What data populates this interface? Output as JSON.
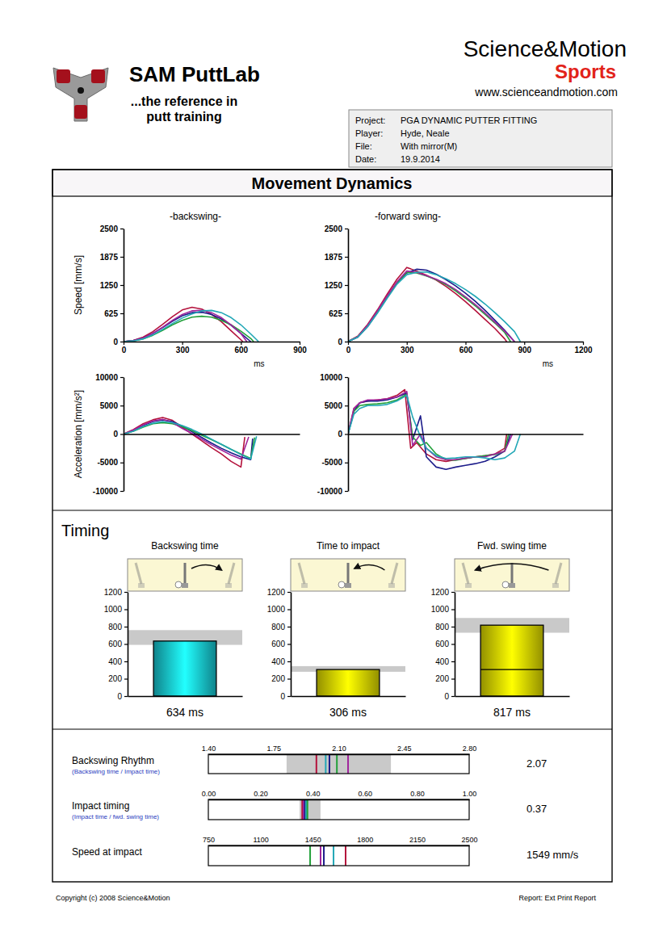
{
  "header": {
    "product": "SAM PuttLab",
    "tagline": [
      "...the reference in",
      "putt training"
    ],
    "company": "Science&Motion",
    "division": "Sports",
    "website": "www.scienceandmotion.com"
  },
  "info": {
    "rows": [
      {
        "label": "Project:",
        "value": "PGA DYNAMIC PUTTER FITTING"
      },
      {
        "label": "Player:",
        "value": "Hyde, Neale"
      },
      {
        "label": "File:",
        "value": "With mirror(M)"
      },
      {
        "label": "Date:",
        "value": "19.9.2014"
      }
    ]
  },
  "section_titles": {
    "dynamics": "Movement Dynamics",
    "timing": "Timing"
  },
  "chart_data": [
    {
      "type": "line",
      "title": "-backswing-",
      "y_label": "Speed [mm/s]",
      "x_label": "ms",
      "xlim": [
        0,
        900
      ],
      "xticks": [
        0,
        300,
        600,
        900
      ],
      "ylim": [
        0,
        2500
      ],
      "yticks": [
        0,
        625,
        1250,
        1875,
        2500
      ],
      "series": [
        {
          "color": "#b4123c",
          "x": [
            0,
            50,
            100,
            150,
            200,
            250,
            300,
            350,
            400,
            450,
            500,
            550,
            600,
            610
          ],
          "values": [
            0,
            25,
            100,
            220,
            380,
            550,
            700,
            760,
            720,
            600,
            440,
            240,
            40,
            0
          ]
        },
        {
          "color": "#1c1c8a",
          "x": [
            0,
            50,
            100,
            150,
            200,
            250,
            300,
            350,
            400,
            450,
            500,
            550,
            600,
            650
          ],
          "values": [
            0,
            20,
            80,
            180,
            310,
            450,
            570,
            640,
            650,
            600,
            500,
            360,
            180,
            0
          ]
        },
        {
          "color": "#22a03a",
          "x": [
            0,
            50,
            100,
            150,
            200,
            250,
            300,
            350,
            400,
            450,
            500,
            550,
            600,
            650,
            665
          ],
          "values": [
            0,
            15,
            60,
            140,
            250,
            370,
            470,
            540,
            560,
            540,
            470,
            370,
            230,
            70,
            0
          ]
        },
        {
          "color": "#a0249c",
          "x": [
            0,
            50,
            100,
            150,
            200,
            250,
            300,
            350,
            400,
            450,
            500,
            550,
            600,
            630
          ],
          "values": [
            0,
            20,
            80,
            180,
            320,
            470,
            600,
            680,
            690,
            640,
            530,
            370,
            180,
            0
          ]
        },
        {
          "color": "#22a7b6",
          "x": [
            0,
            50,
            100,
            150,
            200,
            250,
            300,
            350,
            400,
            450,
            500,
            550,
            600,
            650,
            690
          ],
          "values": [
            0,
            15,
            60,
            150,
            270,
            400,
            520,
            610,
            680,
            690,
            640,
            530,
            370,
            170,
            0
          ]
        }
      ]
    },
    {
      "type": "line",
      "title": "-forward swing-",
      "x_label": "ms",
      "xlim": [
        0,
        1200
      ],
      "xticks": [
        0,
        300,
        600,
        900,
        1200
      ],
      "ylim": [
        0,
        2500
      ],
      "yticks": [
        0,
        625,
        1250,
        1875,
        2500
      ],
      "series": [
        {
          "color": "#b4123c",
          "x": [
            0,
            50,
            100,
            150,
            200,
            250,
            300,
            350,
            400,
            450,
            500,
            550,
            600,
            650,
            700,
            750,
            800,
            810
          ],
          "values": [
            0,
            120,
            380,
            700,
            1050,
            1380,
            1640,
            1560,
            1470,
            1360,
            1220,
            1060,
            880,
            690,
            490,
            290,
            60,
            0
          ]
        },
        {
          "color": "#1c1c8a",
          "x": [
            0,
            50,
            100,
            150,
            200,
            250,
            300,
            350,
            400,
            450,
            500,
            550,
            600,
            650,
            700,
            750,
            800,
            850
          ],
          "values": [
            0,
            100,
            330,
            640,
            980,
            1300,
            1520,
            1600,
            1580,
            1490,
            1370,
            1230,
            1070,
            890,
            690,
            470,
            250,
            0
          ]
        },
        {
          "color": "#22a03a",
          "x": [
            0,
            50,
            100,
            150,
            200,
            250,
            300,
            350,
            400,
            450,
            500,
            550,
            600,
            650,
            700,
            750,
            800,
            830
          ],
          "values": [
            0,
            110,
            350,
            660,
            990,
            1300,
            1530,
            1520,
            1450,
            1370,
            1260,
            1120,
            960,
            790,
            600,
            410,
            200,
            0
          ]
        },
        {
          "color": "#a0249c",
          "x": [
            0,
            50,
            100,
            150,
            200,
            250,
            300,
            350,
            400,
            450,
            500,
            550,
            600,
            650,
            700,
            750,
            800,
            850
          ],
          "values": [
            0,
            110,
            360,
            680,
            1010,
            1320,
            1560,
            1530,
            1460,
            1380,
            1280,
            1150,
            990,
            820,
            630,
            430,
            230,
            0
          ]
        },
        {
          "color": "#22a7b6",
          "x": [
            0,
            50,
            100,
            150,
            200,
            250,
            300,
            350,
            400,
            450,
            500,
            550,
            600,
            650,
            700,
            750,
            800,
            850,
            880
          ],
          "values": [
            0,
            100,
            330,
            630,
            960,
            1270,
            1480,
            1530,
            1540,
            1480,
            1390,
            1280,
            1150,
            1000,
            830,
            640,
            440,
            220,
            0
          ]
        }
      ]
    },
    {
      "type": "line",
      "y_label": "Acceleration [mm/s²]",
      "tick_labels": "y",
      "xlim": [
        0,
        900
      ],
      "ylim": [
        -10000,
        10000
      ],
      "yticks": [
        -10000,
        -5000,
        0,
        5000,
        10000
      ],
      "series": [
        {
          "color": "#b4123c",
          "x": [
            0,
            50,
            100,
            150,
            200,
            250,
            300,
            350,
            400,
            450,
            500,
            550,
            600,
            620
          ],
          "values": [
            0,
            800,
            1800,
            2500,
            2900,
            2400,
            1200,
            0,
            -1200,
            -2400,
            -3500,
            -4800,
            -5800,
            -500
          ]
        },
        {
          "color": "#1c1c8a",
          "x": [
            0,
            50,
            100,
            150,
            200,
            250,
            300,
            350,
            400,
            450,
            500,
            550,
            600,
            650,
            660
          ],
          "values": [
            0,
            600,
            1500,
            2200,
            2500,
            2200,
            1400,
            400,
            -600,
            -1600,
            -2500,
            -3300,
            -4000,
            -4500,
            -800
          ]
        },
        {
          "color": "#22a03a",
          "x": [
            0,
            50,
            100,
            150,
            200,
            250,
            300,
            350,
            400,
            450,
            500,
            550,
            600,
            650,
            670
          ],
          "values": [
            0,
            500,
            1200,
            1800,
            2000,
            1800,
            1300,
            600,
            -200,
            -1000,
            -1800,
            -2700,
            -3500,
            -4300,
            -600
          ]
        },
        {
          "color": "#a0249c",
          "x": [
            0,
            50,
            100,
            150,
            200,
            250,
            300,
            350,
            400,
            450,
            500,
            550,
            600,
            640
          ],
          "values": [
            0,
            700,
            1600,
            2300,
            2600,
            2000,
            1000,
            100,
            -900,
            -1900,
            -2800,
            -3700,
            -4400,
            -500
          ]
        },
        {
          "color": "#22a7b6",
          "x": [
            0,
            50,
            100,
            150,
            200,
            250,
            300,
            350,
            400,
            450,
            500,
            550,
            600,
            650,
            680
          ],
          "values": [
            0,
            500,
            1300,
            1900,
            2200,
            2000,
            1500,
            800,
            0,
            -900,
            -1800,
            -2700,
            -3600,
            -4400,
            -400
          ]
        }
      ]
    },
    {
      "type": "line",
      "tick_labels": "y",
      "xlim": [
        0,
        1200
      ],
      "ylim": [
        -10000,
        10000
      ],
      "yticks": [
        -10000,
        -5000,
        0,
        5000,
        10000
      ],
      "series": [
        {
          "color": "#b4123c",
          "x": [
            0,
            30,
            60,
            100,
            150,
            200,
            250,
            290,
            320,
            350,
            400,
            450,
            500,
            550,
            600,
            650,
            700,
            750,
            800,
            810
          ],
          "values": [
            0,
            4500,
            5500,
            5800,
            6000,
            6200,
            6800,
            7800,
            -2500,
            -1500,
            -3500,
            -4500,
            -4800,
            -4500,
            -4300,
            -4000,
            -3800,
            -3500,
            -2500,
            0
          ]
        },
        {
          "color": "#1c1c8a",
          "x": [
            0,
            30,
            60,
            100,
            150,
            200,
            250,
            300,
            330,
            370,
            400,
            450,
            500,
            550,
            600,
            650,
            700,
            750,
            800,
            830
          ],
          "values": [
            0,
            4000,
            5500,
            5800,
            5800,
            6000,
            6500,
            7200,
            -1000,
            3200,
            -4000,
            -5800,
            -6200,
            -5800,
            -5500,
            -5200,
            -4800,
            -4000,
            -3000,
            0
          ]
        },
        {
          "color": "#22a03a",
          "x": [
            0,
            30,
            60,
            100,
            150,
            200,
            250,
            300,
            330,
            370,
            400,
            450,
            500,
            550,
            600,
            650,
            700,
            750,
            800,
            820
          ],
          "values": [
            0,
            4000,
            5000,
            5200,
            5300,
            5500,
            6000,
            7000,
            -500,
            -2000,
            -1500,
            -3500,
            -4500,
            -4600,
            -4300,
            -4000,
            -3800,
            -3600,
            -3000,
            0
          ]
        },
        {
          "color": "#a0249c",
          "x": [
            0,
            30,
            60,
            100,
            150,
            200,
            250,
            300,
            330,
            370,
            400,
            450,
            500,
            550,
            600,
            650,
            700,
            750,
            800,
            840
          ],
          "values": [
            0,
            4500,
            5500,
            6000,
            6000,
            6200,
            6500,
            7500,
            -2000,
            0,
            -2500,
            -4000,
            -4500,
            -4500,
            -4200,
            -4000,
            -4000,
            -3500,
            -3000,
            0
          ]
        },
        {
          "color": "#22a7b6",
          "x": [
            0,
            30,
            60,
            100,
            150,
            200,
            250,
            300,
            330,
            370,
            400,
            450,
            500,
            550,
            600,
            650,
            700,
            750,
            800,
            850,
            880
          ],
          "values": [
            0,
            3500,
            4500,
            5000,
            5000,
            5200,
            5800,
            6800,
            3000,
            -500,
            -2500,
            -3800,
            -4300,
            -4200,
            -4000,
            -4000,
            -4200,
            -4500,
            -4200,
            -3000,
            0
          ]
        }
      ]
    },
    {
      "type": "bar",
      "title": "Backswing time",
      "categories": [
        null
      ],
      "values": [
        634
      ],
      "value_labels": [
        "634 ms"
      ],
      "data_labels": true,
      "color": "#16c0cc",
      "tick_labels": "y",
      "ylim": [
        0,
        1200
      ],
      "yticks": [
        0,
        200,
        400,
        600,
        800,
        1000,
        1200
      ],
      "target_range": [
        590,
        760
      ]
    },
    {
      "type": "bar",
      "title": "Time to impact",
      "categories": [
        null
      ],
      "values": [
        306
      ],
      "value_labels": [
        "306 ms"
      ],
      "data_labels": true,
      "color": "#d8d400",
      "tick_labels": "y",
      "ylim": [
        0,
        1200
      ],
      "yticks": [
        0,
        200,
        400,
        600,
        800,
        1000,
        1200
      ],
      "target_range": [
        280,
        345
      ]
    },
    {
      "type": "bar",
      "title": "Fwd. swing time",
      "categories": [
        null
      ],
      "values": [
        817
      ],
      "value_labels": [
        "817 ms"
      ],
      "data_labels": true,
      "color": "#d8d400",
      "tick_labels": "y",
      "ylim": [
        0,
        1200
      ],
      "yticks": [
        0,
        200,
        400,
        600,
        800,
        1000,
        1200
      ],
      "target_range": [
        730,
        900
      ],
      "impact_time": 306
    },
    {
      "type": "strip",
      "title": "Backswing Rhythm",
      "subtitle": "(Backswing time / Impact time)",
      "xlim": [
        1.4,
        2.8
      ],
      "xticks": [
        {
          "value": 1.4,
          "label": "1.40"
        },
        1.75,
        {
          "value": 2.1,
          "label": "2.10"
        },
        2.45,
        {
          "value": 2.8,
          "label": "2.80"
        }
      ],
      "values": [
        1.98,
        2.03,
        2.05,
        2.09,
        2.15
      ],
      "colors": [
        "#b4123c",
        "#22a7b6",
        "#1c1c8a",
        "#22a03a",
        "#a0249c"
      ],
      "target_range": [
        1.82,
        2.38
      ],
      "summary": 2.07
    },
    {
      "type": "strip",
      "title": "Impact timing",
      "subtitle": "(Impact time / fwd. swing time)",
      "xlim": [
        0,
        1
      ],
      "xticks": [
        {
          "value": 0,
          "label": "0.00"
        },
        {
          "value": 0.2,
          "label": "0.20"
        },
        {
          "value": 0.4,
          "label": "0.40"
        },
        {
          "value": 0.6,
          "label": "0.60"
        },
        {
          "value": 0.8,
          "label": "0.80"
        },
        {
          "value": 1,
          "label": "1.00"
        }
      ],
      "values": [
        0.36,
        0.365,
        0.37,
        0.375,
        0.38
      ],
      "colors": [
        "#b4123c",
        "#a0249c",
        "#1c1c8a",
        "#22a7b6",
        "#22a03a"
      ],
      "target_range": [
        0.35,
        0.43
      ],
      "summary": 0.37
    },
    {
      "type": "strip",
      "title": "Speed at impact",
      "xlim": [
        750,
        2500
      ],
      "xticks": [
        750,
        1100,
        1450,
        1800,
        2150,
        2500
      ],
      "values": [
        1433,
        1503,
        1525,
        1590,
        1671
      ],
      "colors": [
        "#22a03a",
        "#a0249c",
        "#1c1c8a",
        "#22a7b6",
        "#b4123c"
      ],
      "summary": 1549,
      "summary_label": "1549 mm/s"
    }
  ],
  "footer": {
    "left": "Copyright (c) 2008 Science&Motion",
    "right": "Report: Ext Print Report"
  }
}
